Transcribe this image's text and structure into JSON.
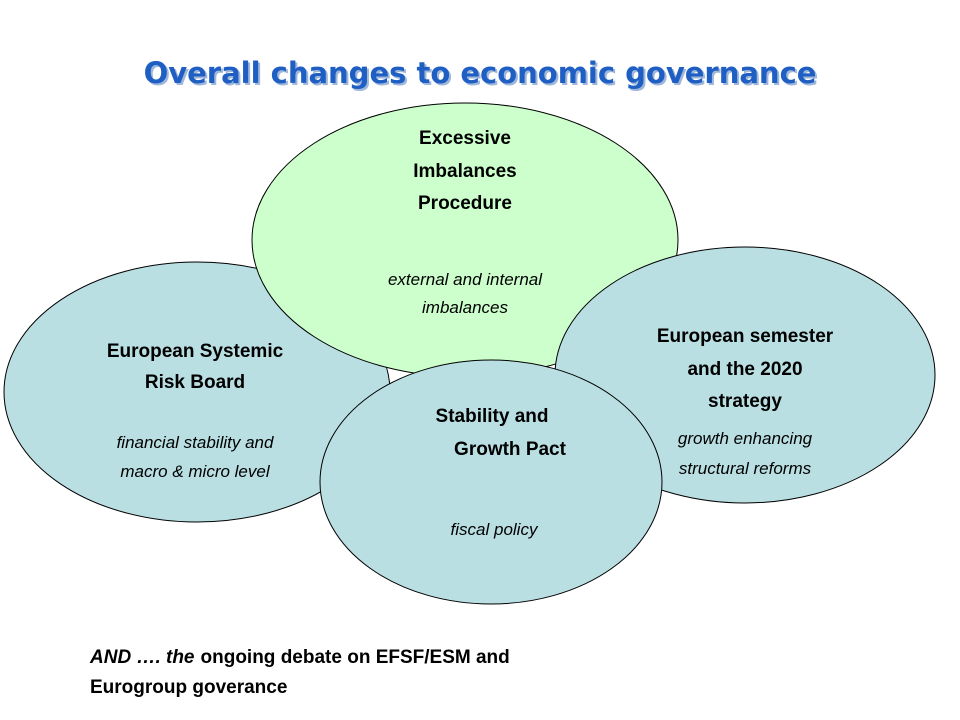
{
  "title": "Overall changes to economic governance",
  "nodes": [
    {
      "title": [
        "Excessive",
        "Imbalances",
        "Procedure"
      ],
      "description": [
        "external and internal",
        "imbalances"
      ]
    },
    {
      "title": [
        "European Systemic",
        "Risk Board"
      ],
      "description": [
        "financial stability and",
        "macro & micro level"
      ]
    },
    {
      "title": [
        "European semester",
        "and the 2020",
        "strategy"
      ],
      "description": [
        "growth enhancing",
        "structural reforms"
      ]
    },
    {
      "title": [
        "Stability and",
        "Growth Pact"
      ],
      "description": [
        "fiscal policy"
      ]
    }
  ],
  "footer": {
    "lines": [
      [
        "AND …. the",
        "ongoing debate on EFSF/ESM and"
      ],
      [
        "Eurogroup goverance"
      ]
    ]
  }
}
